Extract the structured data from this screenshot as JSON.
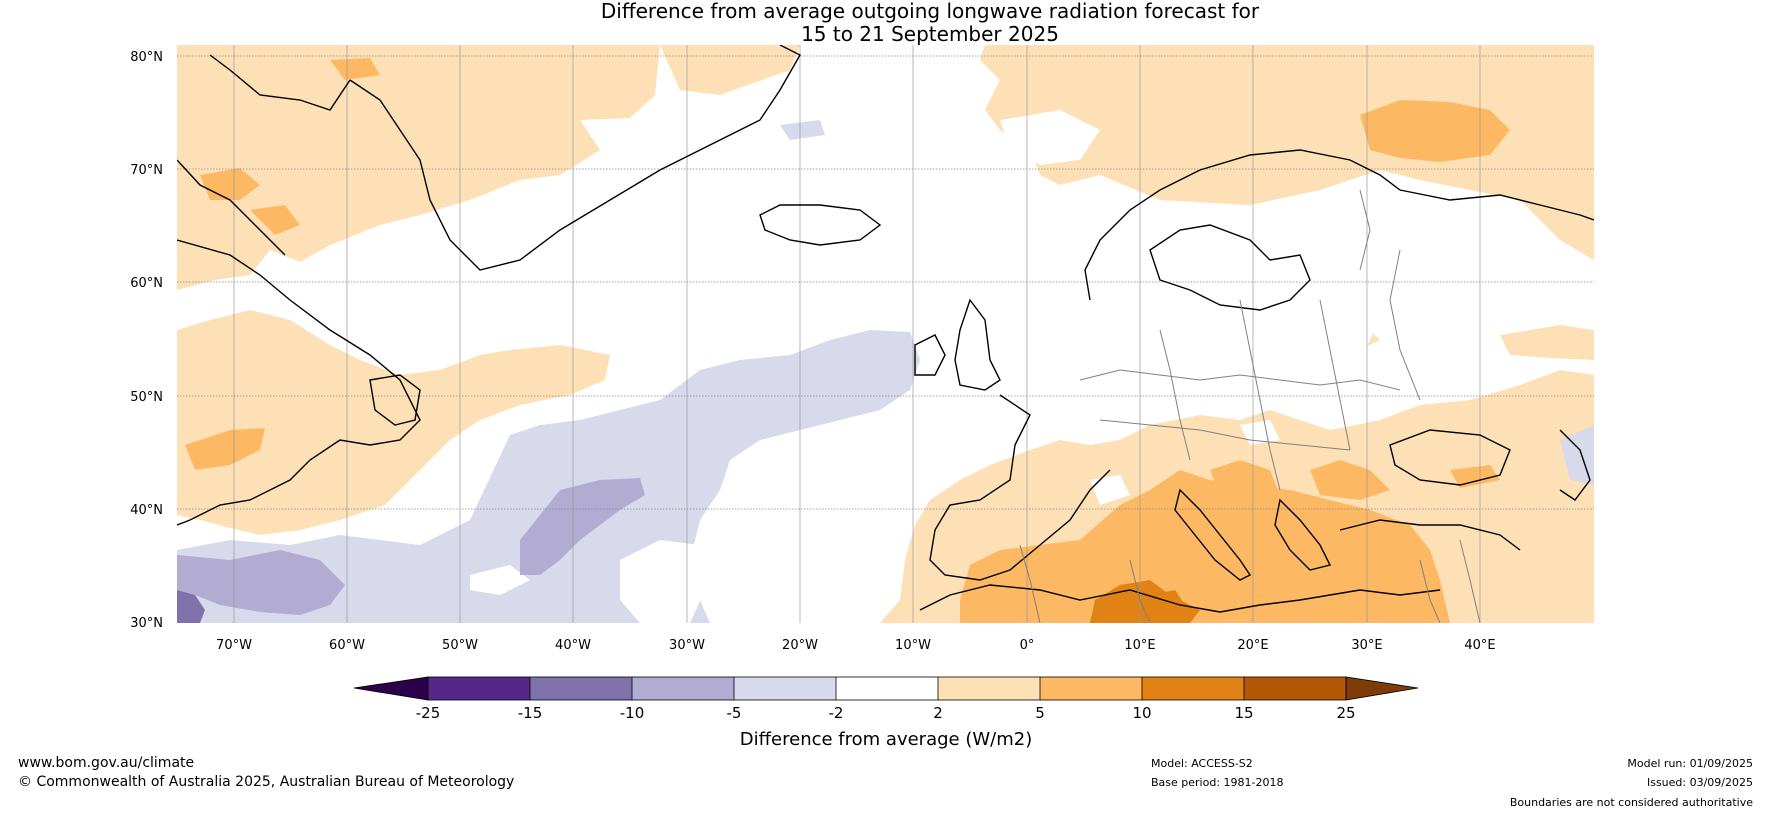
{
  "title": {
    "line1": "Difference from average outgoing longwave radiation forecast for",
    "line2": "15 to 21 September 2025"
  },
  "lat_labels": [
    "80°N",
    "70°N",
    "60°N",
    "50°N",
    "40°N",
    "30°N"
  ],
  "lon_labels": [
    "70°W",
    "60°W",
    "50°W",
    "40°W",
    "30°W",
    "20°W",
    "10°W",
    "0°",
    "10°E",
    "20°E",
    "30°E",
    "40°E"
  ],
  "colorbar": {
    "label": "Difference from average (W/m2)",
    "ticks": [
      "-25",
      "-15",
      "-10",
      "-5",
      "-2",
      "2",
      "5",
      "10",
      "15",
      "25"
    ],
    "colors": [
      "#2d004b",
      "#542788",
      "#8073ac",
      "#b2abd2",
      "#d8daeb",
      "#ffffff",
      "#fee0b6",
      "#fdb863",
      "#e08214",
      "#b35806",
      "#7f3b08"
    ]
  },
  "footer": {
    "url": "www.bom.gov.au/climate",
    "copyright": "© Commonwealth of Australia 2025, Australian Bureau of Meteorology",
    "model": "Model: ACCESS-S2",
    "base_period": "Base period: 1981-2018",
    "model_run": "Model run: 01/09/2025",
    "issued": "Issued: 03/09/2025",
    "boundaries": "Boundaries are not considered authoritative"
  }
}
